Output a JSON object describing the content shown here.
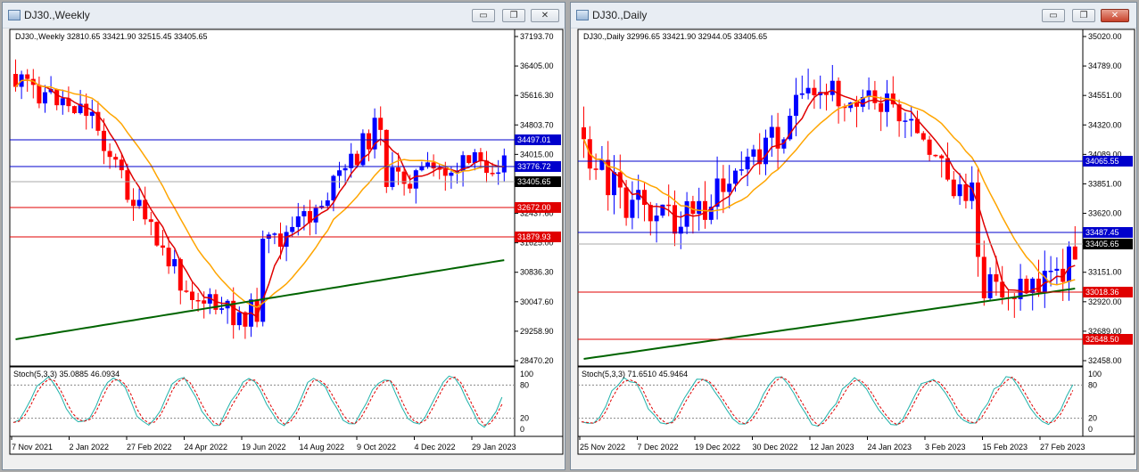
{
  "window_weekly": {
    "title": "DJ30.,Weekly",
    "info": "DJ30.,Weekly  32810.65 33421.90 32515.45 33405.65",
    "stoch": "Stoch(5,3,3) 35.0885 46.0934",
    "price_ticks": [
      "37193.70",
      "36405.00",
      "35616.30",
      "34803.70",
      "34015.00",
      "33226.30",
      "32437.60",
      "31625.00",
      "30836.30",
      "30047.60",
      "29258.90",
      "28470.20"
    ],
    "tags": [
      {
        "text": "34497.01",
        "color": "#0000cc"
      },
      {
        "text": "33776.72",
        "color": "#0000cc"
      },
      {
        "text": "33405.65",
        "color": "#000000"
      },
      {
        "text": "32672.00",
        "color": "#e00000"
      },
      {
        "text": "31879.93",
        "color": "#e00000"
      }
    ],
    "osc_ticks": [
      "100",
      "80",
      "20",
      "0"
    ],
    "dates": [
      "7 Nov 2021",
      "2 Jan 2022",
      "27 Feb 2022",
      "24 Apr 2022",
      "19 Jun 2022",
      "14 Aug 2022",
      "9 Oct 2022",
      "4 Dec 2022",
      "29 Jan 2023"
    ]
  },
  "window_daily": {
    "title": "DJ30.,Daily",
    "info": "DJ30.,Daily  32996.65 33421.90 32944.05 33405.65",
    "stoch": "Stoch(5,3,3) 71.6510 45.9464",
    "price_ticks": [
      "35020.00",
      "34789.00",
      "34551.00",
      "34320.00",
      "34089.00",
      "33851.00",
      "33620.00",
      "33382.00",
      "33151.00",
      "32920.00",
      "32689.00",
      "32458.00"
    ],
    "tags": [
      {
        "text": "34065.55",
        "color": "#0000cc"
      },
      {
        "text": "33487.45",
        "color": "#0000cc"
      },
      {
        "text": "33405.65",
        "color": "#000000"
      },
      {
        "text": "33018.36",
        "color": "#e00000"
      },
      {
        "text": "32648.50",
        "color": "#e00000"
      }
    ],
    "osc_ticks": [
      "100",
      "80",
      "20",
      "0"
    ],
    "dates": [
      "25 Nov 2022",
      "7 Dec 2022",
      "19 Dec 2022",
      "30 Dec 2022",
      "12 Jan 2023",
      "24 Jan 2023",
      "3 Feb 2023",
      "15 Feb 2023",
      "27 Feb 2023"
    ]
  },
  "buttons": {
    "minimize": "▭",
    "restore": "❐",
    "close": "✕"
  },
  "colors": {
    "bull": "#0000ff",
    "bear": "#ff0000",
    "ma_fast": "#e00000",
    "ma_mid": "#ffa500",
    "ma_slow": "#006400",
    "stoch_main": "#20b2aa",
    "stoch_signal": "#e00000"
  }
}
